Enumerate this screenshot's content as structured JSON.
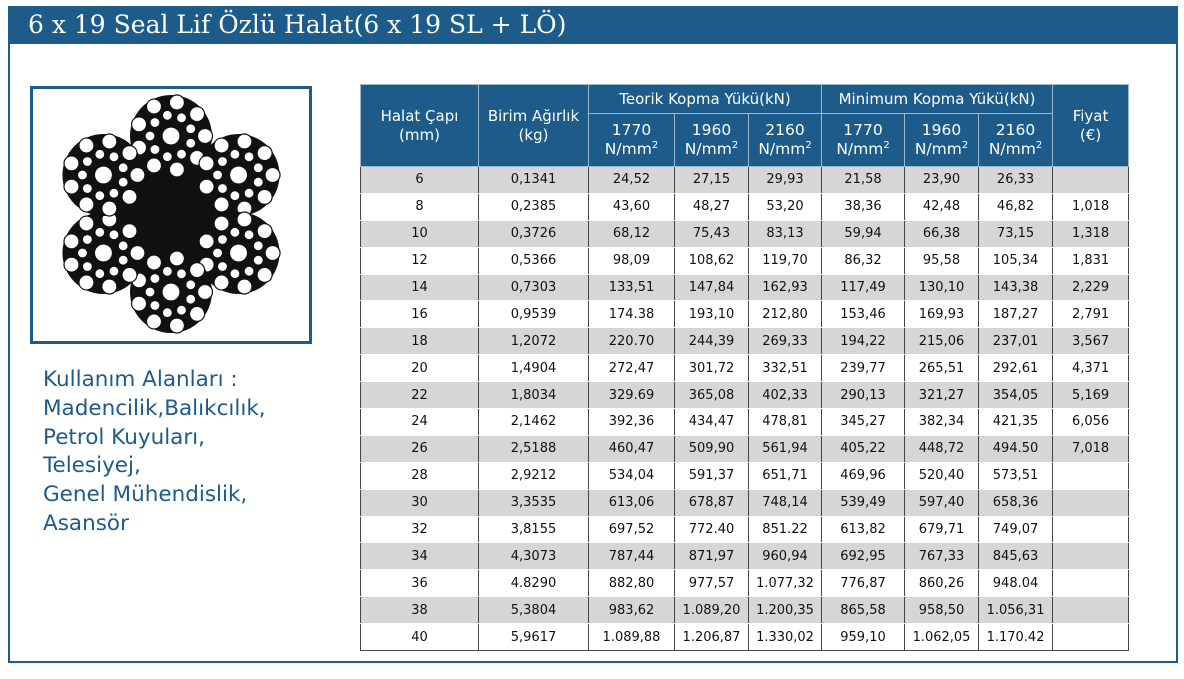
{
  "title": "6 x 19 Seal Lif Özlü Halat(6 x 19 SL + LÖ)",
  "usage": {
    "heading": "Kullanım Alanları :",
    "items": [
      "Madencilik,Balıkcılık,",
      "Petrol Kuyuları,",
      "Telesiyej,",
      "Genel Mühendislik,",
      "Asansör"
    ]
  },
  "table": {
    "headers": {
      "diameter": [
        "Halat Çapı",
        "(mm)"
      ],
      "weight": [
        "Birim Ağırlık",
        "(kg)"
      ],
      "theoretical": "Teorik Kopma Yükü(kN)",
      "minimum": "Minimum Kopma Yükü(kN)",
      "price": [
        "Fiyat",
        "(€)"
      ],
      "grades": [
        "1770",
        "1960",
        "2160",
        "1770",
        "1960",
        "2160"
      ],
      "unit": "N/mm",
      "unit_sup": "2"
    },
    "rows": [
      [
        "6",
        "0,1341",
        "24,52",
        "27,15",
        "29,93",
        "21,58",
        "23,90",
        "26,33",
        ""
      ],
      [
        "8",
        "0,2385",
        "43,60",
        "48,27",
        "53,20",
        "38,36",
        "42,48",
        "46,82",
        "1,018"
      ],
      [
        "10",
        "0,3726",
        "68,12",
        "75,43",
        "83,13",
        "59,94",
        "66,38",
        "73,15",
        "1,318"
      ],
      [
        "12",
        "0,5366",
        "98,09",
        "108,62",
        "119,70",
        "86,32",
        "95,58",
        "105,34",
        "1,831"
      ],
      [
        "14",
        "0,7303",
        "133,51",
        "147,84",
        "162,93",
        "117,49",
        "130,10",
        "143,38",
        "2,229"
      ],
      [
        "16",
        "0,9539",
        "174.38",
        "193,10",
        "212,80",
        "153,46",
        "169,93",
        "187,27",
        "2,791"
      ],
      [
        "18",
        "1,2072",
        "220.70",
        "244,39",
        "269,33",
        "194,22",
        "215,06",
        "237,01",
        "3,567"
      ],
      [
        "20",
        "1,4904",
        "272,47",
        "301,72",
        "332,51",
        "239,77",
        "265,51",
        "292,61",
        "4,371"
      ],
      [
        "22",
        "1,8034",
        "329.69",
        "365,08",
        "402,33",
        "290,13",
        "321,27",
        "354,05",
        "5,169"
      ],
      [
        "24",
        "2,1462",
        "392,36",
        "434,47",
        "478,81",
        "345,27",
        "382,34",
        "421,35",
        "6,056"
      ],
      [
        "26",
        "2,5188",
        "460,47",
        "509,90",
        "561,94",
        "405,22",
        "448,72",
        "494.50",
        "7,018"
      ],
      [
        "28",
        "2,9212",
        "534,04",
        "591,37",
        "651,71",
        "469,96",
        "520,40",
        "573,51",
        ""
      ],
      [
        "30",
        "3,3535",
        "613,06",
        "678,87",
        "748,14",
        "539,49",
        "597,40",
        "658,36",
        ""
      ],
      [
        "32",
        "3,8155",
        "697,52",
        "772.40",
        "851.22",
        "613,82",
        "679,71",
        "749,07",
        ""
      ],
      [
        "34",
        "4,3073",
        "787,44",
        "871,97",
        "960,94",
        "692,95",
        "767,33",
        "845,63",
        ""
      ],
      [
        "36",
        "4.8290",
        "882,80",
        "977,57",
        "1.077,32",
        "776,87",
        "860,26",
        "948.04",
        ""
      ],
      [
        "38",
        "5,3804",
        "983,62",
        "1.089,20",
        "1.200,35",
        "865,58",
        "958,50",
        "1.056,31",
        ""
      ],
      [
        "40",
        "5,9617",
        "1.089,88",
        "1.206,87",
        "1.330,02",
        "959,10",
        "1.062,05",
        "1.170.42",
        ""
      ]
    ]
  },
  "colors": {
    "brand_blue": "#1c5b8a",
    "row_gray": "#d6d6d6"
  },
  "image": {
    "icon": "wire-rope-cross-section-icon"
  }
}
